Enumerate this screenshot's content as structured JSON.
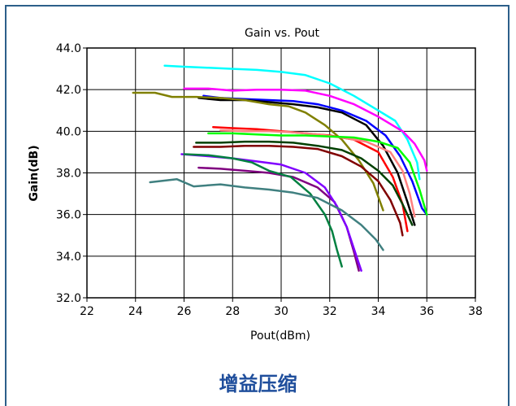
{
  "caption": "增益压缩",
  "chart_data": {
    "type": "line",
    "title": "Gain vs. Pout",
    "xlabel": "Pout(dBm)",
    "ylabel": "Gain(dB)",
    "xlim": [
      22,
      38
    ],
    "ylim": [
      32,
      44
    ],
    "xticks": [
      22,
      24,
      26,
      28,
      30,
      32,
      34,
      36,
      38
    ],
    "yticks": [
      32,
      34,
      36,
      38,
      40,
      42,
      44
    ],
    "ytick_labels": [
      "32.0",
      "34.0",
      "36.0",
      "38.0",
      "40.0",
      "42.0",
      "44.0"
    ],
    "grid": true,
    "series": [
      {
        "color": "#00ffff",
        "points": [
          [
            25.2,
            43.15
          ],
          [
            26,
            43.1
          ],
          [
            27,
            43.05
          ],
          [
            28,
            43.0
          ],
          [
            29,
            42.95
          ],
          [
            30,
            42.85
          ],
          [
            31,
            42.7
          ],
          [
            32,
            42.3
          ],
          [
            33,
            41.7
          ],
          [
            34,
            41.0
          ],
          [
            34.7,
            40.5
          ],
          [
            35.2,
            39.6
          ],
          [
            35.6,
            38.5
          ],
          [
            35.7,
            37.7
          ]
        ]
      },
      {
        "color": "#ff00ff",
        "points": [
          [
            26,
            42.05
          ],
          [
            27,
            42.05
          ],
          [
            28,
            41.95
          ],
          [
            29,
            42.0
          ],
          [
            30,
            42.0
          ],
          [
            31,
            41.95
          ],
          [
            32,
            41.7
          ],
          [
            33,
            41.3
          ],
          [
            34,
            40.7
          ],
          [
            35,
            40.0
          ],
          [
            35.5,
            39.4
          ],
          [
            35.9,
            38.6
          ],
          [
            36.0,
            38.1
          ]
        ]
      },
      {
        "color": "#0000ff",
        "points": [
          [
            26.8,
            41.7
          ],
          [
            27.5,
            41.6
          ],
          [
            28.5,
            41.55
          ],
          [
            29.5,
            41.5
          ],
          [
            30.5,
            41.45
          ],
          [
            31.5,
            41.3
          ],
          [
            32.5,
            41.0
          ],
          [
            33.5,
            40.5
          ],
          [
            34.3,
            39.8
          ],
          [
            34.9,
            38.8
          ],
          [
            35.4,
            37.6
          ],
          [
            35.8,
            36.3
          ],
          [
            36.0,
            36.0
          ]
        ]
      },
      {
        "color": "#000000",
        "points": [
          [
            26.6,
            41.6
          ],
          [
            27.5,
            41.5
          ],
          [
            28.5,
            41.5
          ],
          [
            29.5,
            41.4
          ],
          [
            30.5,
            41.3
          ],
          [
            31.5,
            41.15
          ],
          [
            32.5,
            40.9
          ],
          [
            33.5,
            40.3
          ],
          [
            34.2,
            39.3
          ],
          [
            34.8,
            38.0
          ],
          [
            35.2,
            36.6
          ],
          [
            35.5,
            35.5
          ]
        ]
      },
      {
        "color": "#808000",
        "points": [
          [
            23.9,
            41.85
          ],
          [
            24.8,
            41.85
          ],
          [
            25.5,
            41.65
          ],
          [
            26.5,
            41.65
          ],
          [
            27.5,
            41.6
          ],
          [
            28.5,
            41.5
          ],
          [
            29.5,
            41.3
          ],
          [
            30.3,
            41.2
          ],
          [
            31,
            40.9
          ],
          [
            31.8,
            40.3
          ],
          [
            32.5,
            39.6
          ],
          [
            33.2,
            38.6
          ],
          [
            33.8,
            37.5
          ],
          [
            34.2,
            36.2
          ]
        ]
      },
      {
        "color": "#ff0000",
        "points": [
          [
            27.2,
            40.2
          ],
          [
            28,
            40.15
          ],
          [
            29,
            40.1
          ],
          [
            30,
            40.0
          ],
          [
            31,
            39.9
          ],
          [
            32,
            39.8
          ],
          [
            33,
            39.6
          ],
          [
            34,
            39.0
          ],
          [
            34.6,
            37.8
          ],
          [
            35.0,
            36.5
          ],
          [
            35.2,
            35.2
          ]
        ]
      },
      {
        "color": "#ff8080",
        "points": [
          [
            27.5,
            40.05
          ],
          [
            28.5,
            40.0
          ],
          [
            29.5,
            40.0
          ],
          [
            30.5,
            39.95
          ],
          [
            31.5,
            39.85
          ],
          [
            32.5,
            39.7
          ],
          [
            33.5,
            39.5
          ],
          [
            34.5,
            39.0
          ],
          [
            35.0,
            38.1
          ],
          [
            35.3,
            37.0
          ],
          [
            35.5,
            35.9
          ]
        ]
      },
      {
        "color": "#00ff00",
        "points": [
          [
            27,
            39.9
          ],
          [
            28,
            39.9
          ],
          [
            29,
            39.85
          ],
          [
            30,
            39.8
          ],
          [
            31,
            39.8
          ],
          [
            32,
            39.75
          ],
          [
            33,
            39.7
          ],
          [
            34,
            39.5
          ],
          [
            34.8,
            39.2
          ],
          [
            35.3,
            38.5
          ],
          [
            35.7,
            37.2
          ],
          [
            36.0,
            36.0
          ]
        ]
      },
      {
        "color": "#004000",
        "points": [
          [
            26.5,
            39.45
          ],
          [
            27.5,
            39.45
          ],
          [
            28.5,
            39.5
          ],
          [
            29.5,
            39.5
          ],
          [
            30.5,
            39.45
          ],
          [
            31.5,
            39.3
          ],
          [
            32.5,
            39.1
          ],
          [
            33.3,
            38.7
          ],
          [
            34.0,
            38.1
          ],
          [
            34.6,
            37.4
          ],
          [
            35.0,
            36.5
          ],
          [
            35.4,
            35.5
          ]
        ]
      },
      {
        "color": "#800000",
        "points": [
          [
            26.4,
            39.25
          ],
          [
            27.5,
            39.25
          ],
          [
            28.5,
            39.3
          ],
          [
            29.5,
            39.3
          ],
          [
            30.5,
            39.25
          ],
          [
            31.5,
            39.15
          ],
          [
            32.5,
            38.8
          ],
          [
            33.3,
            38.3
          ],
          [
            34.0,
            37.6
          ],
          [
            34.5,
            36.7
          ],
          [
            34.9,
            35.6
          ],
          [
            35.0,
            35.0
          ]
        ]
      },
      {
        "color": "#800080",
        "points": [
          [
            26.6,
            38.25
          ],
          [
            27.5,
            38.2
          ],
          [
            28.5,
            38.1
          ],
          [
            29.5,
            38.0
          ],
          [
            30.5,
            37.8
          ],
          [
            31.5,
            37.3
          ],
          [
            32.2,
            36.6
          ],
          [
            32.7,
            35.4
          ],
          [
            33.0,
            34.2
          ],
          [
            33.2,
            33.3
          ]
        ]
      },
      {
        "color": "#8000ff",
        "points": [
          [
            25.9,
            38.9
          ],
          [
            27,
            38.8
          ],
          [
            28,
            38.7
          ],
          [
            29,
            38.55
          ],
          [
            30,
            38.4
          ],
          [
            31,
            38.0
          ],
          [
            31.8,
            37.3
          ],
          [
            32.3,
            36.4
          ],
          [
            32.7,
            35.4
          ],
          [
            33.1,
            34.0
          ],
          [
            33.3,
            33.3
          ]
        ]
      },
      {
        "color": "#008040",
        "points": [
          [
            26,
            38.9
          ],
          [
            27,
            38.85
          ],
          [
            28,
            38.7
          ],
          [
            28.8,
            38.5
          ],
          [
            29.5,
            38.1
          ],
          [
            30.4,
            37.8
          ],
          [
            31.2,
            37.0
          ],
          [
            31.8,
            36.0
          ],
          [
            32.1,
            35.2
          ],
          [
            32.3,
            34.3
          ],
          [
            32.5,
            33.5
          ]
        ]
      },
      {
        "color": "#408080",
        "points": [
          [
            24.6,
            37.55
          ],
          [
            25.7,
            37.7
          ],
          [
            26.4,
            37.35
          ],
          [
            27.5,
            37.45
          ],
          [
            28.5,
            37.3
          ],
          [
            29.5,
            37.2
          ],
          [
            30.5,
            37.05
          ],
          [
            31.5,
            36.8
          ],
          [
            32.5,
            36.2
          ],
          [
            33.3,
            35.5
          ],
          [
            33.9,
            34.8
          ],
          [
            34.2,
            34.3
          ]
        ]
      }
    ]
  }
}
